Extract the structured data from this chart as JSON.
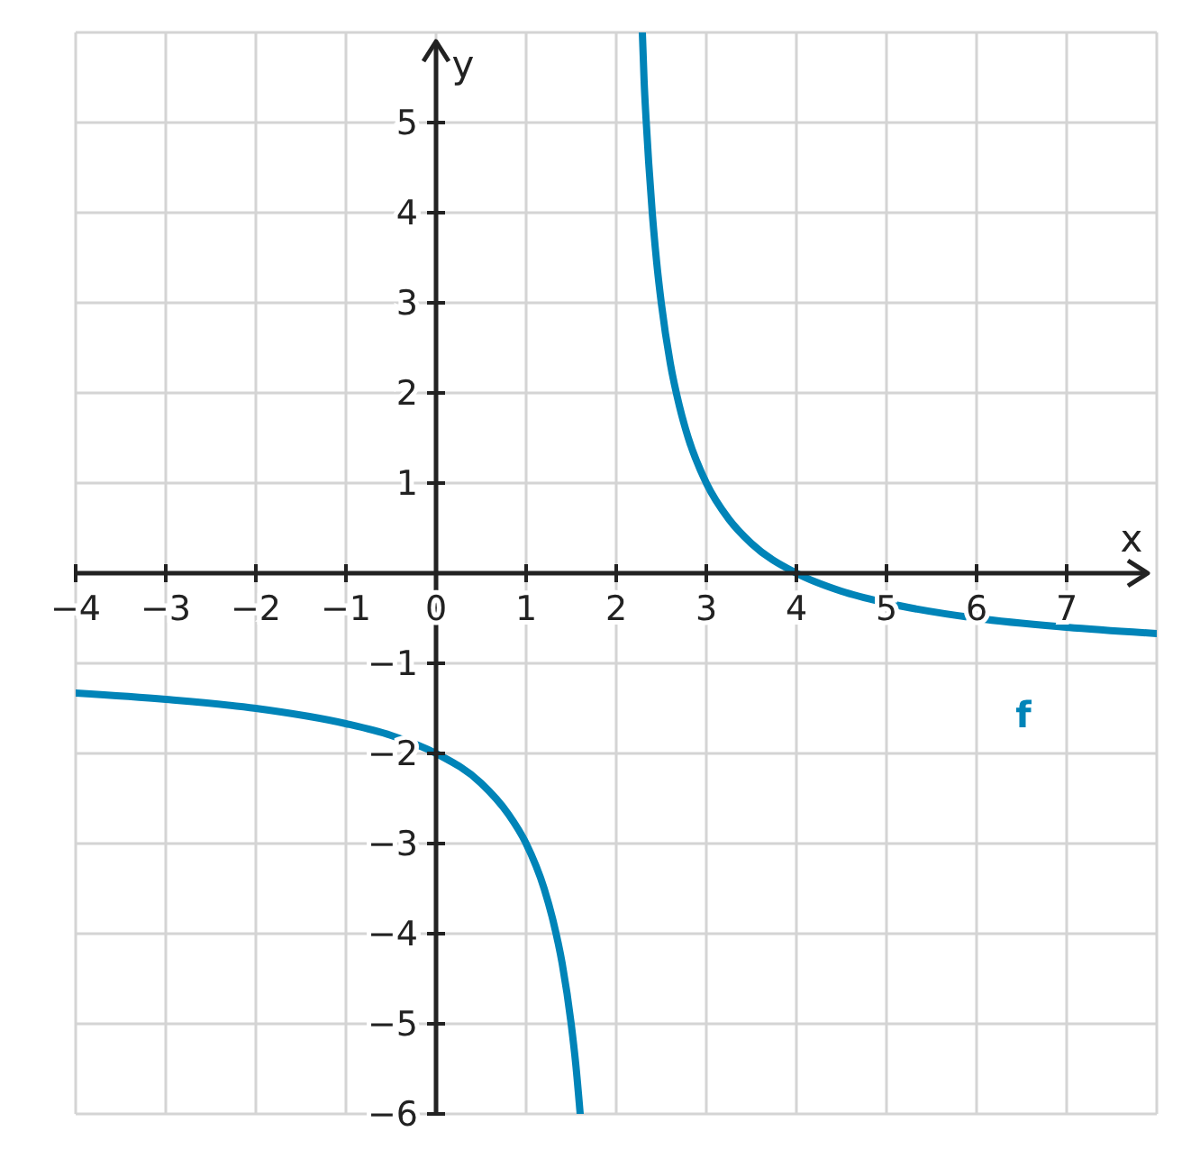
{
  "chart_data": {
    "type": "line",
    "xlabel": "x",
    "ylabel": "y",
    "xlim": [
      -4,
      8
    ],
    "ylim": [
      -6,
      6
    ],
    "xticks": [
      {
        "value": -4,
        "label": "−4"
      },
      {
        "value": -3,
        "label": "−3"
      },
      {
        "value": -2,
        "label": "−2"
      },
      {
        "value": -1,
        "label": "−1"
      },
      0,
      1,
      2,
      3,
      4,
      5,
      6,
      7
    ],
    "yticks": [
      {
        "value": -6,
        "label": "−6"
      },
      {
        "value": -5,
        "label": "−5"
      },
      {
        "value": -4,
        "label": "−4"
      },
      {
        "value": -3,
        "label": "−3"
      },
      {
        "value": -2,
        "label": "−2"
      },
      {
        "value": -1,
        "label": "−1"
      },
      1,
      2,
      3,
      4,
      5
    ],
    "grid": true,
    "marker": "none",
    "line_style": "solid",
    "series": [
      {
        "color": "#0084b8",
        "x": [
          -4,
          -3,
          -2,
          -1,
          -0.5,
          0,
          0.5,
          0.8,
          1,
          1.2,
          1.3,
          1.4,
          1.5,
          1.55,
          1.6
        ],
        "values": [
          -1.33,
          -1.4,
          -1.5,
          -1.67,
          -1.8,
          -2,
          -2.33,
          -2.67,
          -3,
          -3.5,
          -3.86,
          -4.33,
          -5,
          -5.44,
          -6
        ]
      },
      {
        "name": "f",
        "color": "#0084b8",
        "x": [
          2.29,
          2.31,
          2.33,
          2.36,
          2.4,
          2.45,
          2.5,
          2.6,
          2.7,
          2.8,
          3,
          3.25,
          3.5,
          4,
          4.5,
          5,
          6,
          7,
          8
        ],
        "values": [
          6,
          5.45,
          5.06,
          4.56,
          4,
          3.44,
          3,
          2.33,
          1.86,
          1.5,
          1,
          0.6,
          0.33,
          0,
          -0.2,
          -0.33,
          -0.5,
          -0.6,
          -0.67
        ]
      }
    ]
  }
}
